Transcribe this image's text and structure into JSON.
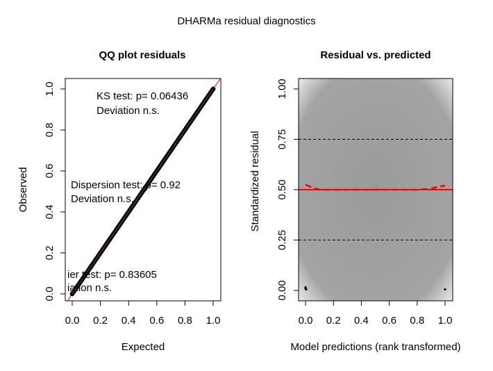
{
  "figure": {
    "title": "DHARMa residual diagnostics"
  },
  "colors": {
    "reference_line": "#ff0000",
    "qq_points": "#000000",
    "quantile_line": "#ff0000",
    "quantile_dash": "#ff0000",
    "band_dark": "#9a9a9a",
    "band_light": "#ffffff"
  },
  "chart_data": [
    {
      "type": "scatter",
      "title": "QQ plot residuals",
      "xlabel": "Expected",
      "ylabel": "Observed",
      "xlim": [
        0,
        1
      ],
      "ylim": [
        0,
        1
      ],
      "x_ticks": [
        "0.0",
        "0.2",
        "0.4",
        "0.6",
        "0.8",
        "1.0"
      ],
      "y_ticks": [
        "0.0",
        "0.2",
        "0.4",
        "0.6",
        "0.8",
        "1.0"
      ],
      "reference_line": [
        [
          0,
          0
        ],
        [
          1,
          1
        ]
      ],
      "qq_points_from": [
        0.0,
        0.0
      ],
      "qq_points_to": [
        1.0,
        1.0
      ],
      "annotations": [
        {
          "line1": "KS test: p= 0.06436",
          "line2": "Deviation  n.s."
        },
        {
          "line1": "Dispersion test: p= 0.92",
          "line2": "Deviation  n.s."
        },
        {
          "line1": "ier test: p= 0.83605",
          "line2": "iation  n.s."
        }
      ]
    },
    {
      "type": "scatter",
      "title": "Residual vs. predicted",
      "xlabel": "Model predictions (rank transformed)",
      "ylabel": "Standardized residual",
      "xlim": [
        0,
        1
      ],
      "ylim": [
        0,
        1
      ],
      "x_ticks": [
        "0.0",
        "0.2",
        "0.4",
        "0.6",
        "0.8",
        "1.0"
      ],
      "y_ticks": [
        "0.00",
        "0.25",
        "0.50",
        "0.75",
        "1.00"
      ],
      "dashed_lines": [
        0.25,
        0.75
      ],
      "median_line": 0.5,
      "quantile_curve": [
        [
          0.0,
          0.525
        ],
        [
          0.05,
          0.51
        ],
        [
          0.1,
          0.5
        ],
        [
          0.15,
          0.5
        ],
        [
          0.2,
          0.5
        ],
        [
          0.3,
          0.5
        ],
        [
          0.4,
          0.5
        ],
        [
          0.5,
          0.5
        ],
        [
          0.6,
          0.5
        ],
        [
          0.7,
          0.5
        ],
        [
          0.8,
          0.5
        ],
        [
          0.9,
          0.505
        ],
        [
          0.95,
          0.515
        ],
        [
          1.0,
          0.52
        ]
      ],
      "points": [
        [
          0.0,
          0.01
        ],
        [
          0.0,
          0.015
        ],
        [
          0.005,
          0.005
        ],
        [
          1.0,
          0.005
        ]
      ]
    }
  ]
}
